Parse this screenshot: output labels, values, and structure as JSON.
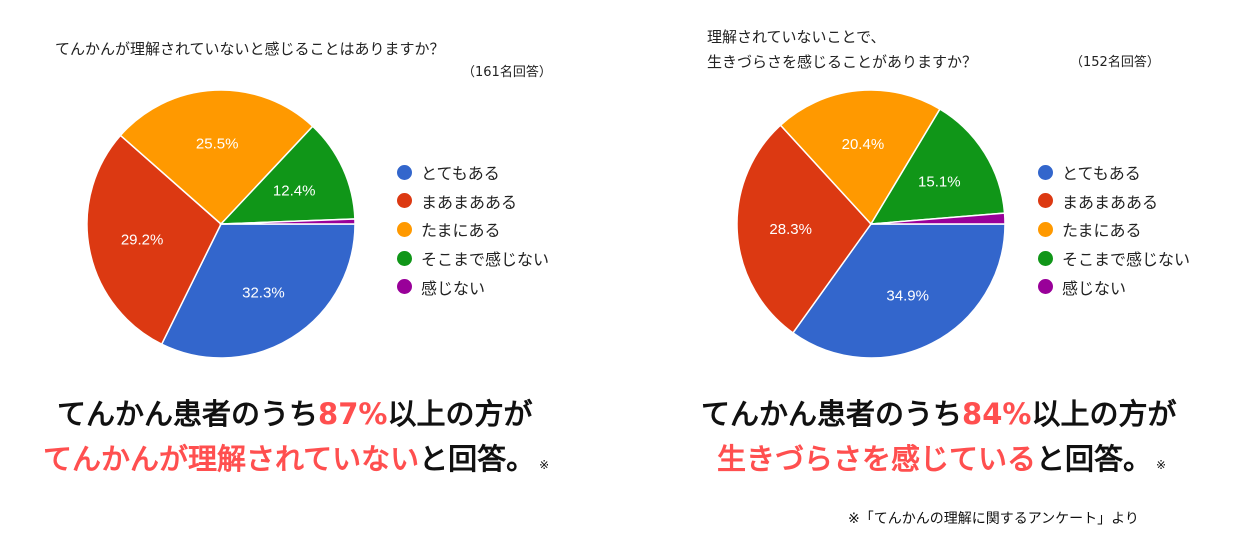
{
  "colors": {
    "blue": "#3366cc",
    "red": "#dc3912",
    "orange": "#ff9900",
    "green": "#109618",
    "purple": "#990099",
    "accent": "#ff4f4f"
  },
  "chart_data": [
    {
      "type": "pie",
      "title": "てんかんが理解されていないと感じることはありますか？",
      "subtitle": "（161名回答）",
      "legend_position": "right",
      "categories": [
        "とてもある",
        "まあまあある",
        "たまにある",
        "そこまで感じない",
        "感じない"
      ],
      "values": [
        32.3,
        29.2,
        25.5,
        12.4,
        0.6
      ],
      "labels": [
        "32.3%",
        "29.2%",
        "25.5%",
        "12.4%",
        ""
      ],
      "colors": [
        "#3366cc",
        "#dc3912",
        "#ff9900",
        "#109618",
        "#990099"
      ]
    },
    {
      "type": "pie",
      "title_line1": "理解されていないことで、",
      "title_line2": "生きづらさを感じることがありますか？",
      "subtitle": "（152名回答）",
      "legend_position": "right",
      "categories": [
        "とてもある",
        "まあまあある",
        "たまにある",
        "そこまで感じない",
        "感じない"
      ],
      "values": [
        34.9,
        28.3,
        20.4,
        15.1,
        1.3
      ],
      "labels": [
        "34.9%",
        "28.3%",
        "20.4%",
        "15.1%",
        ""
      ],
      "colors": [
        "#3366cc",
        "#dc3912",
        "#ff9900",
        "#109618",
        "#990099"
      ]
    }
  ],
  "summaries": [
    {
      "line1_pre": "てんかん患者のうち",
      "line1_accent": "87%",
      "line1_post": "以上の方が",
      "line2_accent": "てんかんが理解されていない",
      "line2_post": "と回答。",
      "mark": "※"
    },
    {
      "line1_pre": "てんかん患者のうち",
      "line1_accent": "84%",
      "line1_post": "以上の方が",
      "line2_accent": "生きづらさを感じている",
      "line2_post": "と回答。",
      "mark": "※"
    }
  ],
  "footnote": "※「てんかんの理解に関するアンケート」より"
}
